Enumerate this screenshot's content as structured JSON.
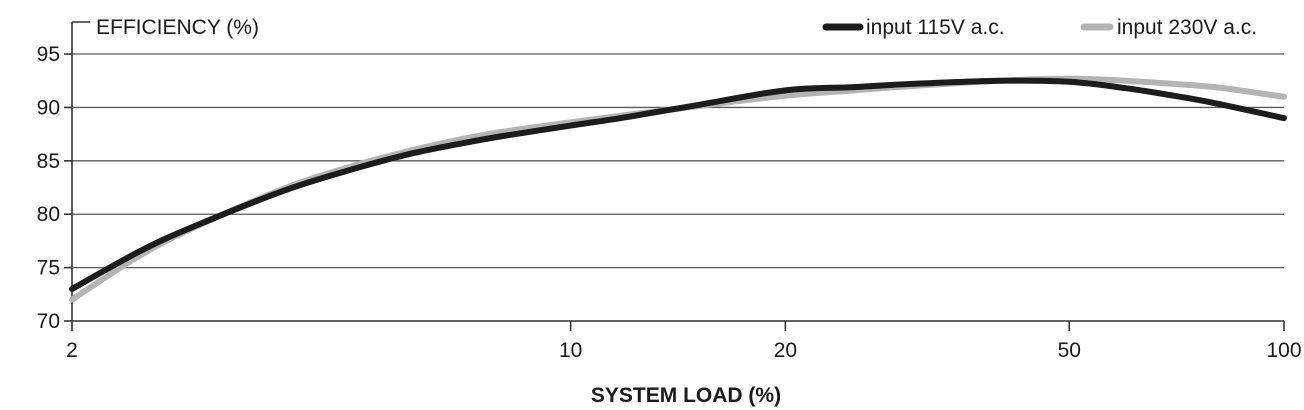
{
  "chart_data": {
    "type": "line",
    "ylabel": "EFFICIENCY (%)",
    "xlabel": "SYSTEM LOAD (%)",
    "xscale": "log",
    "xlim": [
      2,
      100
    ],
    "ylim": [
      70,
      98
    ],
    "x_ticks": [
      2,
      10,
      20,
      50,
      100
    ],
    "y_ticks": [
      70,
      75,
      80,
      85,
      90,
      95
    ],
    "grid": "horizontal",
    "legend_position": "top-right",
    "series": [
      {
        "name": "input 115V a.c.",
        "color": "#1c1c1c",
        "x": [
          2,
          2.5,
          3,
          4,
          5,
          6,
          7,
          8,
          10,
          12,
          15,
          20,
          25,
          30,
          40,
          50,
          60,
          70,
          80,
          100
        ],
        "y": [
          73.0,
          76.6,
          79.0,
          82.3,
          84.3,
          85.7,
          86.6,
          87.3,
          88.3,
          89.1,
          90.2,
          91.6,
          91.9,
          92.2,
          92.5,
          92.4,
          91.8,
          91.1,
          90.4,
          89.0
        ]
      },
      {
        "name": "input 230V a.c.",
        "color": "#b4b4b4",
        "x": [
          2,
          2.5,
          3,
          4,
          5,
          6,
          7,
          8,
          10,
          12,
          15,
          20,
          25,
          30,
          40,
          50,
          60,
          70,
          80,
          100
        ],
        "y": [
          72.0,
          76.2,
          78.9,
          82.5,
          84.6,
          86.0,
          87.0,
          87.7,
          88.6,
          89.3,
          90.1,
          91.1,
          91.6,
          92.0,
          92.5,
          92.7,
          92.5,
          92.2,
          91.9,
          91.0
        ]
      }
    ]
  }
}
